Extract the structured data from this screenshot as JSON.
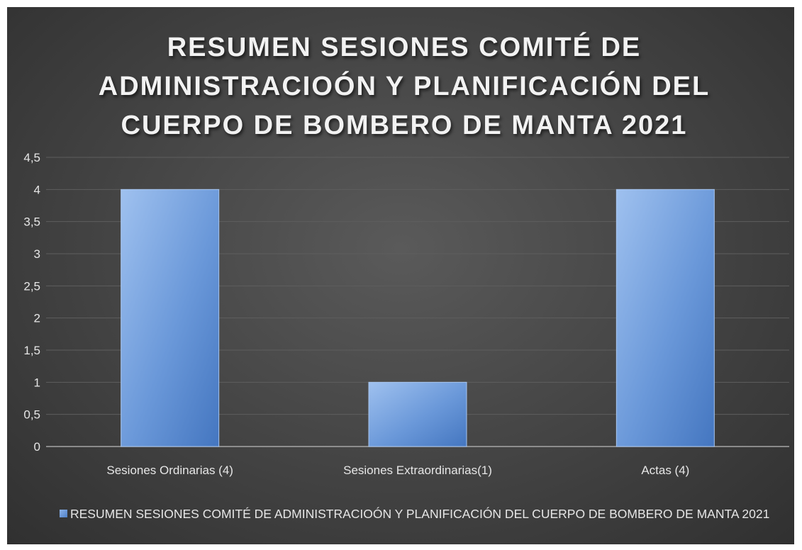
{
  "chart_data": {
    "type": "bar",
    "title": "RESUMEN SESIONES COMITÉ DE\nADMINISTRACIOÓN Y PLANIFICACIÓN DEL\nCUERPO DE BOMBERO DE MANTA  2021",
    "categories": [
      "Sesiones Ordinarias (4)",
      "Sesiones Extraordinarias(1)",
      "Actas (4)"
    ],
    "series": [
      {
        "name": "RESUMEN SESIONES COMITÉ DE ADMINISTRACIOÓN Y PLANIFICACIÓN DEL CUERPO DE BOMBERO DE MANTA  2021",
        "values": [
          4,
          1,
          4
        ]
      }
    ],
    "y_ticks": [
      "0",
      "0,5",
      "1",
      "1,5",
      "2",
      "2,5",
      "3",
      "3,5",
      "4",
      "4,5"
    ],
    "ylim": [
      0,
      4.5
    ],
    "grid": true,
    "legend_position": "bottom",
    "colors": {
      "background": "#474747",
      "bar_light": "#8db3e8",
      "bar_dark": "#4a7bc4",
      "gridline": "#5e5e5e",
      "axis": "#a6a6a6",
      "text": "#e6e6e6"
    }
  }
}
